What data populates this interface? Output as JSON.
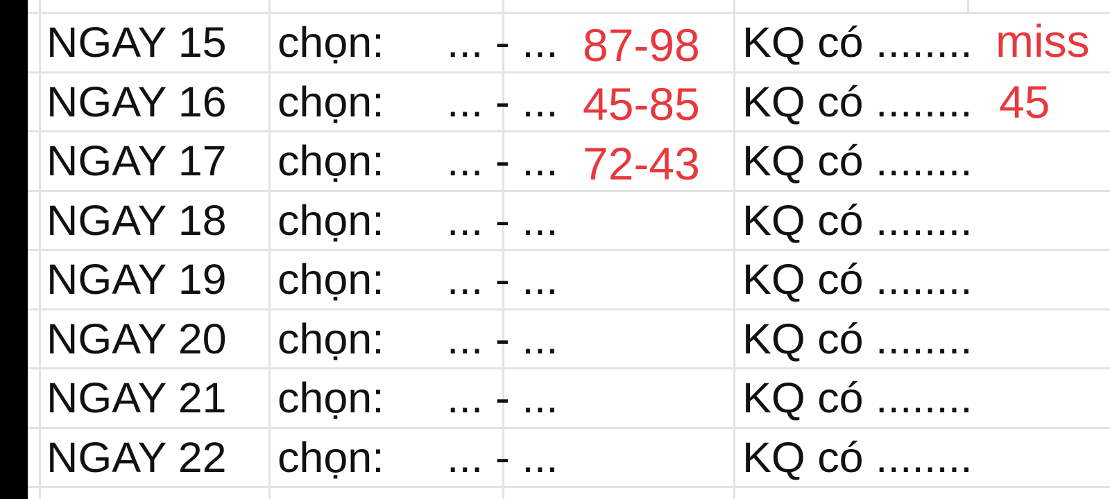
{
  "rows": [
    {
      "day": "NGAY 15",
      "choose_label": "chọn:",
      "pick": "... - ...",
      "result_label": "KQ có ........"
    },
    {
      "day": "NGAY 16",
      "choose_label": "chọn:",
      "pick": "... - ...",
      "result_label": "KQ có ........"
    },
    {
      "day": "NGAY 17",
      "choose_label": "chọn:",
      "pick": "... - ...",
      "result_label": "KQ có ........"
    },
    {
      "day": "NGAY 18",
      "choose_label": "chọn:",
      "pick": "... - ...",
      "result_label": "KQ có ........"
    },
    {
      "day": "NGAY 19",
      "choose_label": "chọn:",
      "pick": "... - ...",
      "result_label": "KQ có ........"
    },
    {
      "day": "NGAY 20",
      "choose_label": "chọn:",
      "pick": "... - ...",
      "result_label": "KQ có ........"
    },
    {
      "day": "NGAY 21",
      "choose_label": "chọn:",
      "pick": "... - ...",
      "result_label": "KQ có ........"
    },
    {
      "day": "NGAY 22",
      "choose_label": "chọn:",
      "pick": "... - ...",
      "result_label": "KQ có ........"
    }
  ],
  "annotations": {
    "color": "#e8383d",
    "pick_15": "87-98",
    "pick_16": "45-85",
    "pick_17": "72-43",
    "result_15": "miss",
    "result_16": "45"
  }
}
